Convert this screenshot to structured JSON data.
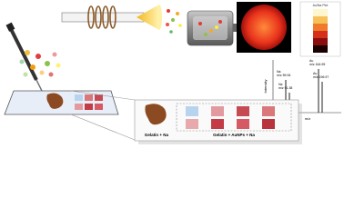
{
  "heatmap": {
    "colorbar_title": "Au/Na Plot"
  },
  "spectrum": {
    "y_label": "Intensity",
    "x_label": "m/z",
    "peaks": [
      {
        "element": "Na",
        "label": "m/z 59.94"
      },
      {
        "element": "Na",
        "label": "m/z 91.38"
      },
      {
        "element": "Au",
        "label": "m/z 164.95"
      },
      {
        "element": "Au",
        "label": "m/z 196.97"
      }
    ]
  },
  "samples": {
    "left": "Gelatin + Na",
    "right": "Gelatin + AuNPs + Na"
  }
}
